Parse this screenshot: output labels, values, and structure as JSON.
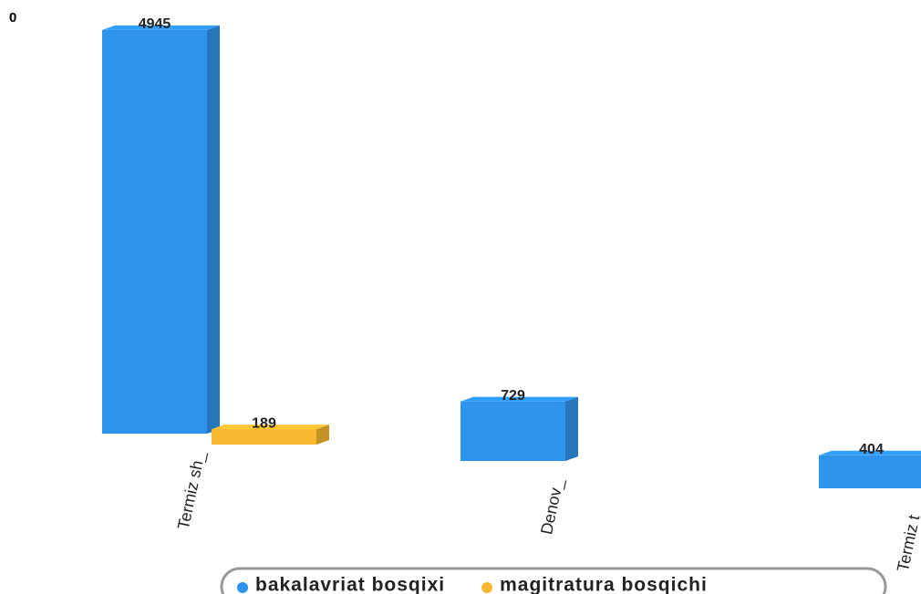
{
  "chart_data": {
    "type": "bar3d",
    "annotations": [
      "0"
    ],
    "categories": [
      "Termiz sh_",
      "Denov_",
      "Termiz t_"
    ],
    "series": [
      {
        "name": "bakalavriat bosqixi",
        "color": "#2e93ea",
        "values": [
          4945,
          729,
          404
        ]
      },
      {
        "name": "magitratura bosqichi",
        "color": "#f5b82e",
        "values": [
          189,
          null,
          null
        ]
      }
    ],
    "ylim": [
      0,
      5000
    ]
  }
}
